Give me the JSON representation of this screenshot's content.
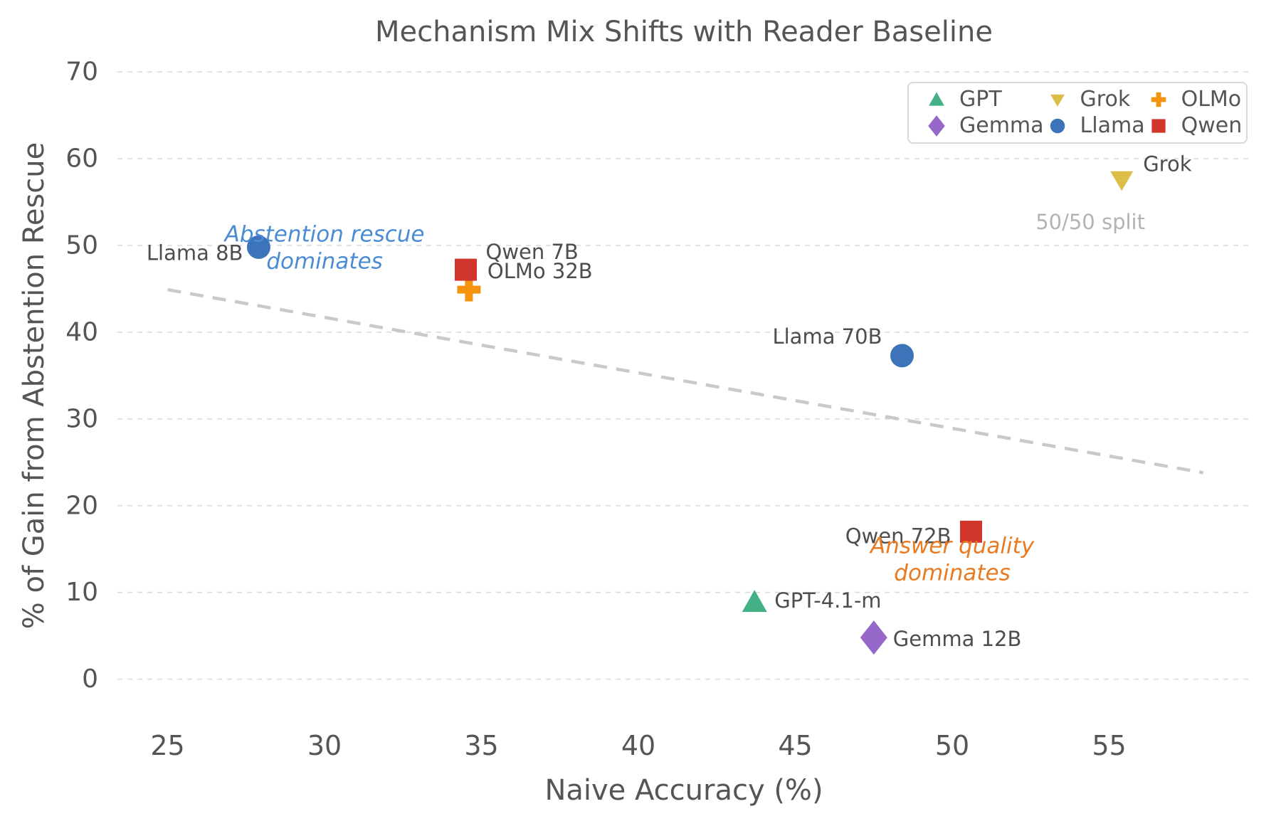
{
  "chart_data": {
    "type": "scatter",
    "title": "Mechanism Mix Shifts with Reader Baseline",
    "xlabel": "Naive Accuracy (%)",
    "ylabel": "% of Gain from Abstention Rescue",
    "xlim": [
      23.4,
      59.5
    ],
    "ylim": [
      -2.9,
      70.5
    ],
    "xticks": [
      25,
      30,
      35,
      40,
      45,
      50,
      55
    ],
    "yticks": [
      0,
      10,
      20,
      30,
      40,
      50,
      60,
      70
    ],
    "grid": "horizontal-dashed-lightgray",
    "legend_position": "upper right",
    "series": [
      {
        "name": "GPT",
        "marker": "triangle-up",
        "color": "#43b086",
        "points": [
          {
            "label": "GPT-4.1-m",
            "x": 43.7,
            "y": 8.9,
            "label_anchor": "start",
            "label_dx": 28,
            "label_dy": -2
          }
        ]
      },
      {
        "name": "Grok",
        "marker": "triangle-down",
        "color": "#dcbe46",
        "points": [
          {
            "label": "Grok",
            "x": 55.4,
            "y": 57.6,
            "label_anchor": "start",
            "label_dx": 30,
            "label_dy": -22
          }
        ]
      },
      {
        "name": "OLMo",
        "marker": "plus",
        "color": "#f5920e",
        "points": [
          {
            "label": "OLMo 32B",
            "x": 34.6,
            "y": 44.9,
            "label_anchor": "start",
            "label_dx": 26,
            "label_dy": -26
          }
        ]
      },
      {
        "name": "Gemma",
        "marker": "diamond",
        "color": "#9668c9",
        "points": [
          {
            "label": "Gemma 12B",
            "x": 47.5,
            "y": 4.8,
            "label_anchor": "start",
            "label_dx": 27,
            "label_dy": 2
          }
        ]
      },
      {
        "name": "Llama",
        "marker": "circle",
        "color": "#3d74b9",
        "points": [
          {
            "label": "Llama 8B",
            "x": 27.9,
            "y": 49.8,
            "label_anchor": "end",
            "label_dx": -22,
            "label_dy": 8
          },
          {
            "label": "Llama 70B",
            "x": 48.4,
            "y": 37.3,
            "label_anchor": "end",
            "label_dx": -28,
            "label_dy": -27
          }
        ]
      },
      {
        "name": "Qwen",
        "marker": "square",
        "color": "#d1352b",
        "points": [
          {
            "label": "Qwen 7B",
            "x": 34.5,
            "y": 47.2,
            "label_anchor": "start",
            "label_dx": 28,
            "label_dy": -25
          },
          {
            "label": "Qwen 72B",
            "x": 50.6,
            "y": 17.0,
            "label_anchor": "end",
            "label_dx": -28,
            "label_dy": 6
          }
        ]
      }
    ],
    "split_line": {
      "label": "50/50 split",
      "x": [
        25.0,
        58.0
      ],
      "y": [
        44.9,
        23.8
      ],
      "style": "dashed",
      "color": "#c9c9c9",
      "label_color": "#b3b3b3",
      "label_x": 54.4,
      "label_y": 52.7
    },
    "annotations": [
      {
        "text": "Abstention rescue\ndominates",
        "x": 30.0,
        "y": 49.7,
        "color": "#4a8cd3",
        "style": "italic"
      },
      {
        "text": "Answer quality\ndominates",
        "x": 50.0,
        "y": 13.8,
        "color": "#e87a22",
        "style": "italic"
      }
    ],
    "legend_entries": [
      {
        "name": "GPT",
        "marker": "triangle-up",
        "color": "#43b086"
      },
      {
        "name": "Grok",
        "marker": "triangle-down",
        "color": "#dcbe46"
      },
      {
        "name": "OLMo",
        "marker": "plus",
        "color": "#f5920e"
      },
      {
        "name": "Gemma",
        "marker": "diamond",
        "color": "#9668c9"
      },
      {
        "name": "Llama",
        "marker": "circle",
        "color": "#3d74b9"
      },
      {
        "name": "Qwen",
        "marker": "square",
        "color": "#d1352b"
      }
    ],
    "colors": {
      "text": "#555555",
      "point_label": "#4d4d4d",
      "grid": "#dedede"
    }
  }
}
